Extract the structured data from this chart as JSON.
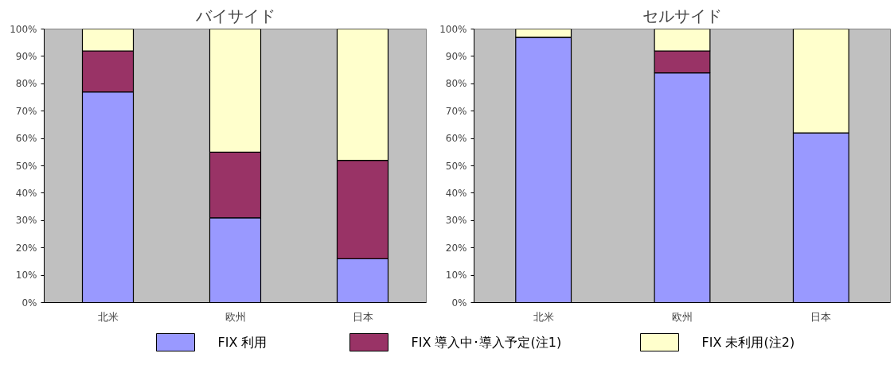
{
  "chart_data": [
    {
      "type": "bar",
      "title": "バイサイド",
      "stacked": true,
      "categories": [
        "北米",
        "欧州",
        "日本"
      ],
      "ylim": [
        0,
        100
      ],
      "yticks": [
        {
          "value": 0,
          "label": "0%"
        },
        {
          "value": 10,
          "label": "10%"
        },
        {
          "value": 20,
          "label": "20%"
        },
        {
          "value": 30,
          "label": "30%"
        },
        {
          "value": 40,
          "label": "40%"
        },
        {
          "value": 50,
          "label": "50%"
        },
        {
          "value": 60,
          "label": "60%"
        },
        {
          "value": 70,
          "label": "70%"
        },
        {
          "value": 80,
          "label": "80%"
        },
        {
          "value": 90,
          "label": "90%"
        },
        {
          "value": 100,
          "label": "100%"
        }
      ],
      "grid": false,
      "legend": "bottom",
      "series": [
        {
          "name": "FIX 利用",
          "color": "#9999ff",
          "values": [
            77,
            31,
            16
          ]
        },
        {
          "name": "FIX 導入中･導入予定(注1)",
          "color": "#993366",
          "values": [
            15,
            24,
            36
          ]
        },
        {
          "name": "FIX 未利用(注2)",
          "color": "#ffffcc",
          "values": [
            8,
            45,
            48
          ]
        }
      ]
    },
    {
      "type": "bar",
      "title": "セルサイド",
      "stacked": true,
      "categories": [
        "北米",
        "欧州",
        "日本"
      ],
      "ylim": [
        0,
        100
      ],
      "yticks": [
        {
          "value": 0,
          "label": "0%"
        },
        {
          "value": 10,
          "label": "10%"
        },
        {
          "value": 20,
          "label": "20%"
        },
        {
          "value": 30,
          "label": "30%"
        },
        {
          "value": 40,
          "label": "40%"
        },
        {
          "value": 50,
          "label": "50%"
        },
        {
          "value": 60,
          "label": "60%"
        },
        {
          "value": 70,
          "label": "70%"
        },
        {
          "value": 80,
          "label": "80%"
        },
        {
          "value": 90,
          "label": "90%"
        },
        {
          "value": 100,
          "label": "100%"
        }
      ],
      "grid": false,
      "series": [
        {
          "color": "#9999ff",
          "values": [
            97,
            84,
            62
          ]
        },
        {
          "color": "#993366",
          "values": [
            0,
            8,
            0
          ]
        },
        {
          "color": "#ffffcc",
          "values": [
            3,
            8,
            38
          ]
        }
      ]
    }
  ]
}
